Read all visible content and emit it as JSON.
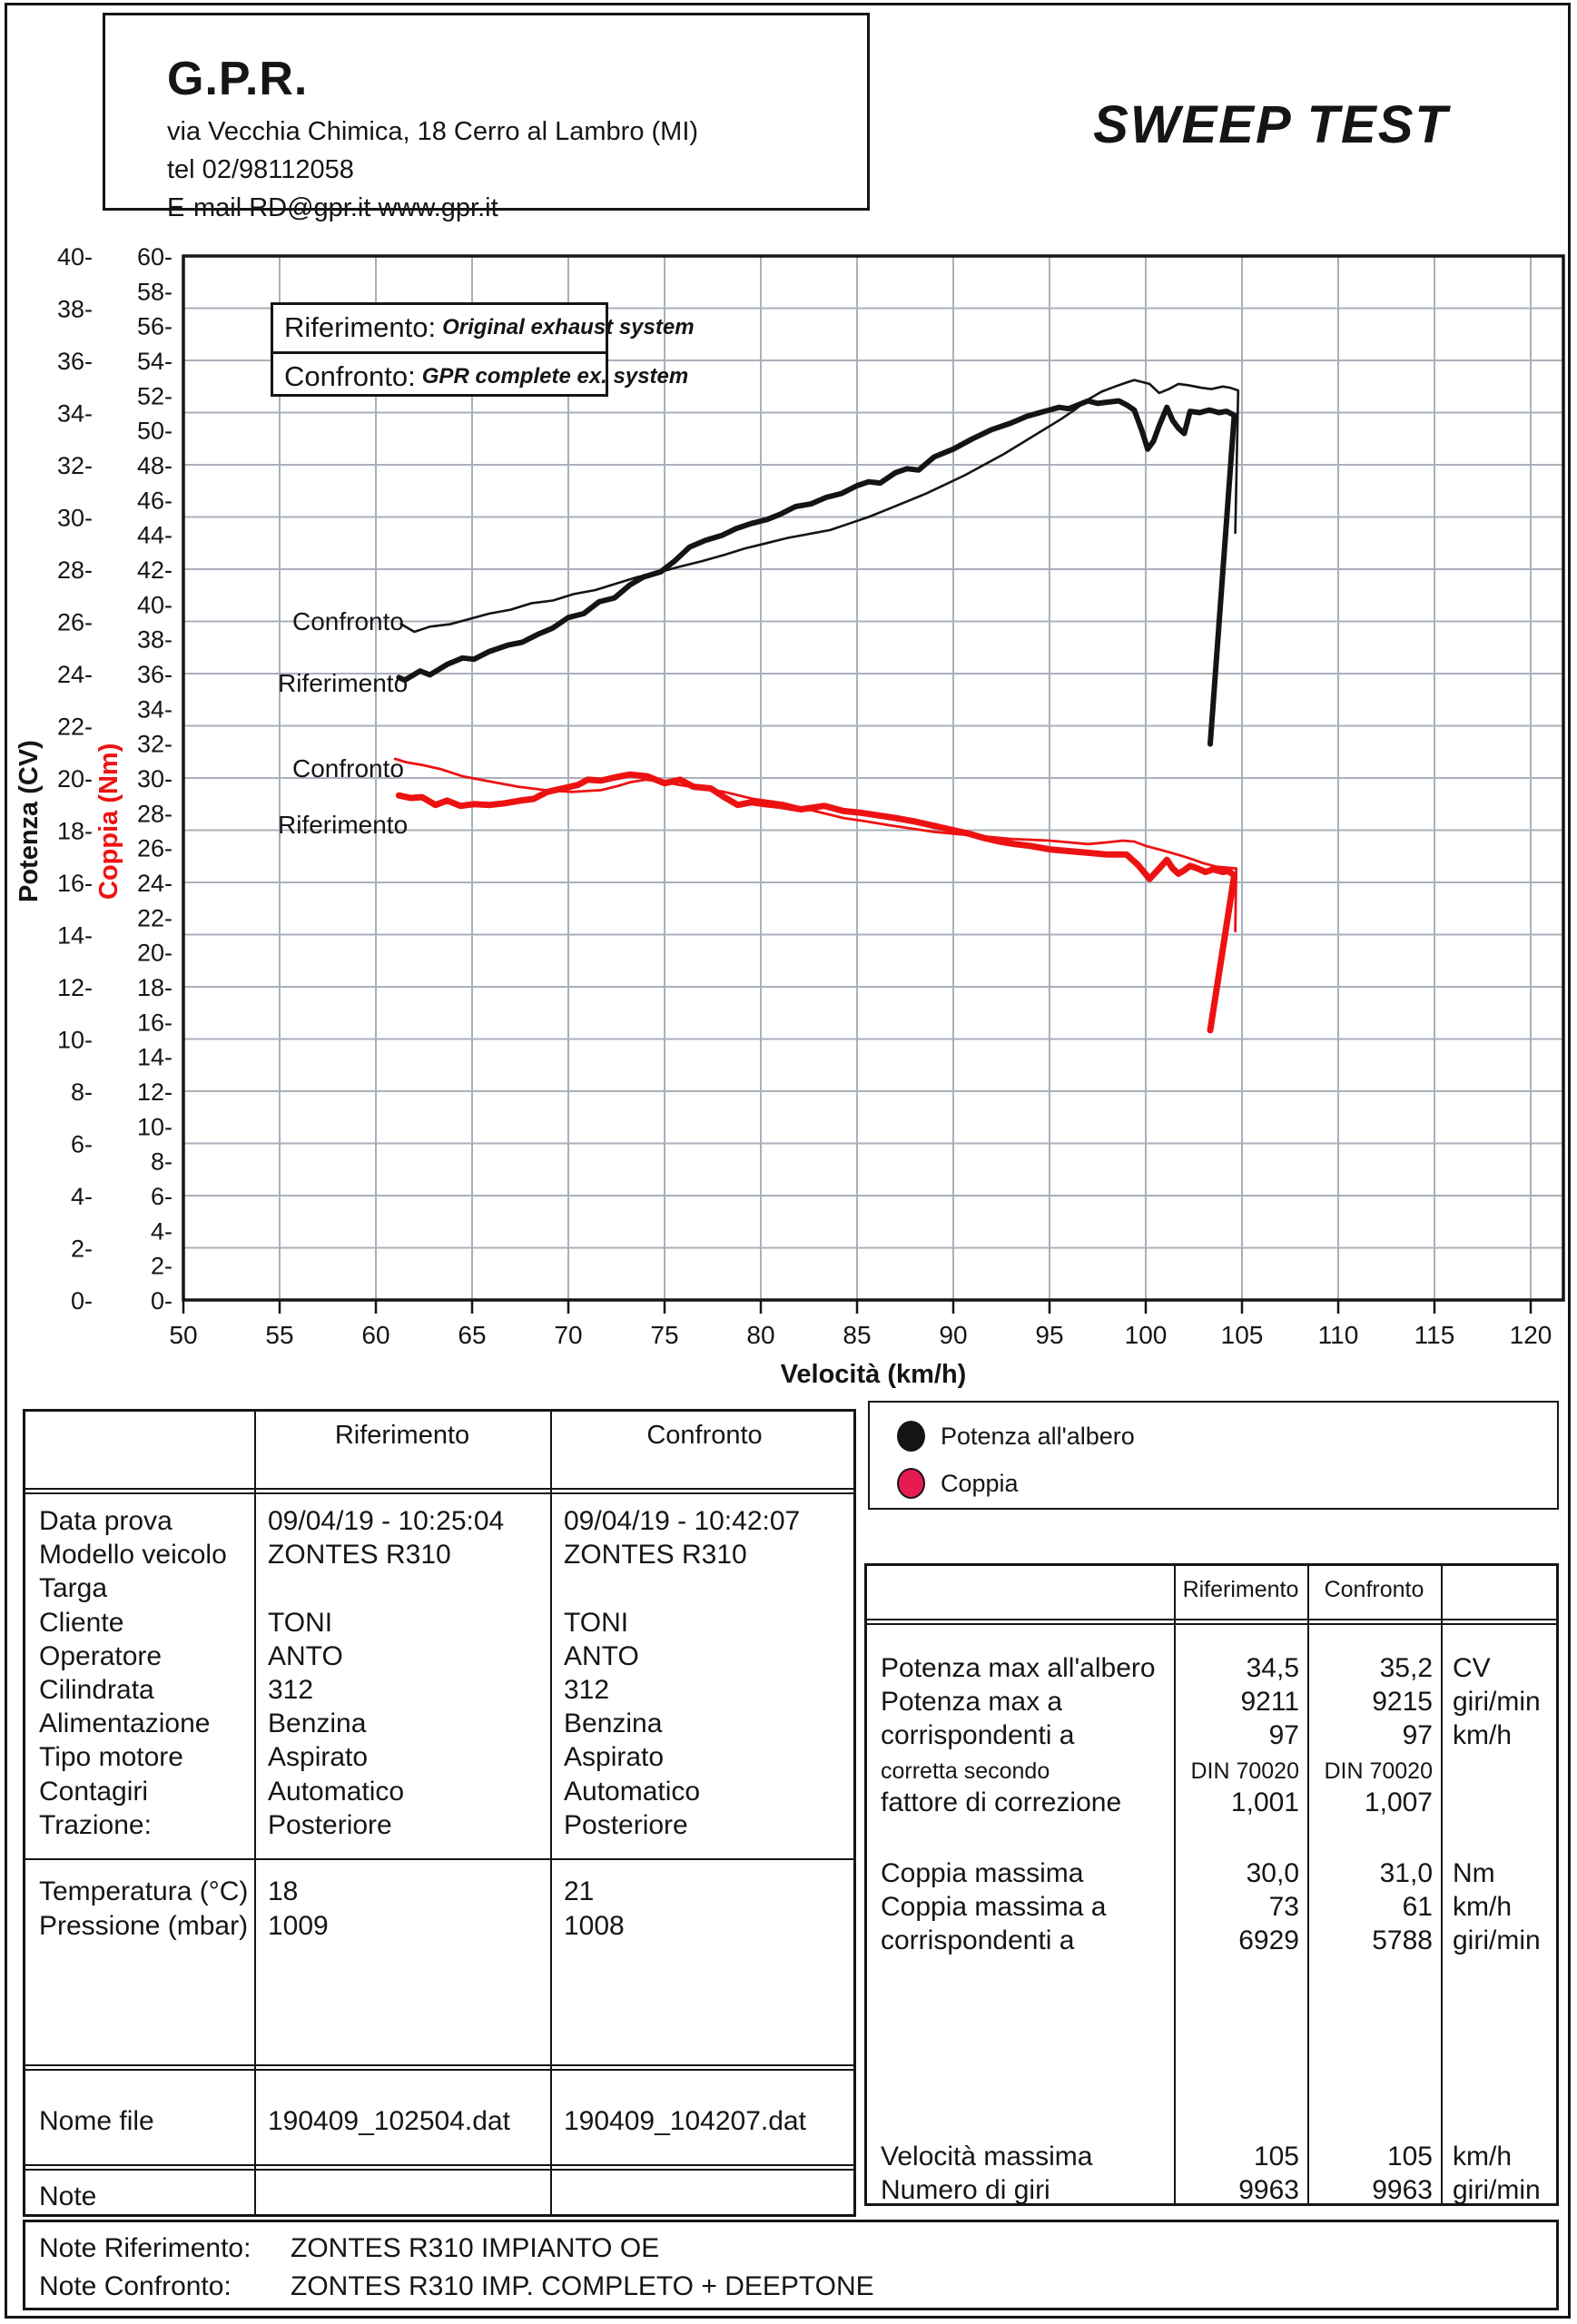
{
  "header": {
    "company": "G.P.R.",
    "address": "via Vecchia Chimica, 18 Cerro al Lambro (MI)",
    "phone": "tel 02/98112058",
    "email_web": "E-mail RD@gpr.it  www.gpr.it",
    "title": "SWEEP TEST"
  },
  "chart_data": {
    "type": "line",
    "xlabel": "Velocità (km/h)",
    "x_axis": {
      "range": [
        50,
        120
      ],
      "tick_step": 5
    },
    "y_axes": {
      "power": {
        "label": "Potenza (CV)",
        "range": [
          0,
          40
        ],
        "tick_step": 2,
        "color": "#151515"
      },
      "torque": {
        "label": "Coppia (Nm)",
        "range": [
          0,
          60
        ],
        "tick_step": 2,
        "color": "#ed1212"
      }
    },
    "grid": {
      "x_step_kmh": 5,
      "y_step_cv": 2,
      "color": "#a9b0ba",
      "on": true
    },
    "legend_position": "upper-left-box",
    "box_legend": [
      {
        "name": "Riferimento:",
        "desc": "Original exhaust system"
      },
      {
        "name": "Confronto:",
        "desc": "GPR complete ex. system"
      }
    ],
    "curve_labels": [
      {
        "text": "Confronto",
        "x": 322,
        "y": 694
      },
      {
        "text": "Riferimento",
        "x": 306,
        "y": 762
      },
      {
        "text": "Confronto",
        "x": 322,
        "y": 856
      },
      {
        "text": "Riferimento",
        "x": 306,
        "y": 918
      }
    ],
    "series": [
      {
        "name": "Potenza Confronto",
        "axis": "power",
        "color": "#141414",
        "width": 2.6,
        "points": [
          [
            61.3,
            25.9
          ],
          [
            62,
            25.6
          ],
          [
            62.8,
            25.8
          ],
          [
            63.9,
            25.9
          ],
          [
            64.9,
            26.1
          ],
          [
            65.9,
            26.3
          ],
          [
            67,
            26.45
          ],
          [
            68.1,
            26.7
          ],
          [
            69.2,
            26.8
          ],
          [
            70.3,
            27.05
          ],
          [
            71.4,
            27.2
          ],
          [
            72.5,
            27.45
          ],
          [
            73.6,
            27.7
          ],
          [
            74.8,
            27.9
          ],
          [
            75.8,
            28.1
          ],
          [
            76.9,
            28.3
          ],
          [
            78.1,
            28.55
          ],
          [
            79.2,
            28.8
          ],
          [
            80.3,
            29
          ],
          [
            81.4,
            29.2
          ],
          [
            82.5,
            29.35
          ],
          [
            83.6,
            29.5
          ],
          [
            84.6,
            29.75
          ],
          [
            85.6,
            30
          ],
          [
            86.6,
            30.3
          ],
          [
            87.6,
            30.6
          ],
          [
            88.6,
            30.9
          ],
          [
            89.6,
            31.25
          ],
          [
            90.6,
            31.6
          ],
          [
            91.6,
            32
          ],
          [
            92.6,
            32.4
          ],
          [
            93.6,
            32.85
          ],
          [
            94.6,
            33.3
          ],
          [
            95.6,
            33.75
          ],
          [
            96.3,
            34.1
          ],
          [
            97,
            34.5
          ],
          [
            97.7,
            34.8
          ],
          [
            98.4,
            35
          ],
          [
            99,
            35.15
          ],
          [
            99.4,
            35.25
          ],
          [
            100.2,
            35.1
          ],
          [
            100.7,
            34.75
          ],
          [
            101.2,
            34.9
          ],
          [
            101.7,
            35.1
          ],
          [
            102.2,
            35.05
          ],
          [
            102.9,
            34.95
          ],
          [
            103.4,
            34.9
          ],
          [
            104,
            35
          ],
          [
            104.4,
            34.95
          ],
          [
            104.8,
            34.85
          ],
          [
            104.65,
            29.4
          ]
        ]
      },
      {
        "name": "Potenza Riferimento",
        "axis": "power",
        "color": "#141414",
        "width": 6,
        "points": [
          [
            61.2,
            23.85
          ],
          [
            61.5,
            23.75
          ],
          [
            62.3,
            24.1
          ],
          [
            62.8,
            23.95
          ],
          [
            63.7,
            24.35
          ],
          [
            64.5,
            24.6
          ],
          [
            65.1,
            24.55
          ],
          [
            65.9,
            24.85
          ],
          [
            66.9,
            25.1
          ],
          [
            67.6,
            25.2
          ],
          [
            68.4,
            25.5
          ],
          [
            69.2,
            25.75
          ],
          [
            70,
            26.15
          ],
          [
            70.8,
            26.3
          ],
          [
            71.6,
            26.75
          ],
          [
            72.4,
            26.9
          ],
          [
            73.2,
            27.4
          ],
          [
            73.9,
            27.7
          ],
          [
            74.8,
            27.9
          ],
          [
            75.5,
            28.3
          ],
          [
            76.3,
            28.85
          ],
          [
            77.1,
            29.1
          ],
          [
            78,
            29.3
          ],
          [
            78.7,
            29.55
          ],
          [
            79.5,
            29.75
          ],
          [
            80.3,
            29.9
          ],
          [
            81,
            30.1
          ],
          [
            81.8,
            30.4
          ],
          [
            82.6,
            30.5
          ],
          [
            83.4,
            30.75
          ],
          [
            84.2,
            30.9
          ],
          [
            85,
            31.2
          ],
          [
            85.6,
            31.35
          ],
          [
            86.2,
            31.3
          ],
          [
            87,
            31.7
          ],
          [
            87.6,
            31.85
          ],
          [
            88.2,
            31.8
          ],
          [
            89,
            32.3
          ],
          [
            90,
            32.6
          ],
          [
            91,
            33
          ],
          [
            92,
            33.35
          ],
          [
            93,
            33.6
          ],
          [
            93.8,
            33.85
          ],
          [
            94.5,
            34
          ],
          [
            95,
            34.1
          ],
          [
            95.5,
            34.2
          ],
          [
            96,
            34.15
          ],
          [
            96.5,
            34.3
          ],
          [
            97,
            34.45
          ],
          [
            97.5,
            34.35
          ],
          [
            98,
            34.4
          ],
          [
            98.6,
            34.45
          ],
          [
            99,
            34.3
          ],
          [
            99.4,
            34.1
          ],
          [
            99.8,
            33.3
          ],
          [
            100.1,
            32.6
          ],
          [
            100.4,
            32.9
          ],
          [
            100.7,
            33.5
          ],
          [
            101.1,
            34.2
          ],
          [
            101.4,
            33.7
          ],
          [
            101.7,
            33.4
          ],
          [
            102,
            33.2
          ],
          [
            102.3,
            34.05
          ],
          [
            102.8,
            34
          ],
          [
            103.3,
            34.1
          ],
          [
            103.8,
            34
          ],
          [
            104.2,
            34.05
          ],
          [
            104.6,
            33.9
          ],
          [
            103.35,
            21.3
          ]
        ]
      },
      {
        "name": "Coppia Confronto",
        "axis": "torque",
        "color": "#ed1212",
        "width": 2.8,
        "points": [
          [
            61,
            31.1
          ],
          [
            61.6,
            30.9
          ],
          [
            62.4,
            30.75
          ],
          [
            63.4,
            30.5
          ],
          [
            64.5,
            30.1
          ],
          [
            65.9,
            29.8
          ],
          [
            67.4,
            29.5
          ],
          [
            68.8,
            29.3
          ],
          [
            70.2,
            29.2
          ],
          [
            71.7,
            29.3
          ],
          [
            72.6,
            29.55
          ],
          [
            73.2,
            29.75
          ],
          [
            74,
            29.9
          ],
          [
            74.8,
            29.8
          ],
          [
            75.8,
            29.6
          ],
          [
            76.9,
            29.4
          ],
          [
            78.1,
            29.2
          ],
          [
            79.6,
            28.8
          ],
          [
            81.2,
            28.55
          ],
          [
            82.8,
            28.1
          ],
          [
            84.3,
            27.7
          ],
          [
            85.5,
            27.5
          ],
          [
            86.6,
            27.3
          ],
          [
            87.8,
            27.1
          ],
          [
            89,
            26.9
          ],
          [
            90,
            26.8
          ],
          [
            91,
            26.7
          ],
          [
            92,
            26.6
          ],
          [
            93,
            26.5
          ],
          [
            94,
            26.45
          ],
          [
            95,
            26.4
          ],
          [
            96,
            26.3
          ],
          [
            97,
            26.2
          ],
          [
            98,
            26.3
          ],
          [
            98.8,
            26.4
          ],
          [
            99.4,
            26.35
          ],
          [
            100,
            26.1
          ],
          [
            101,
            25.8
          ],
          [
            101.8,
            25.55
          ],
          [
            102.5,
            25.3
          ],
          [
            103,
            25.1
          ],
          [
            103.7,
            24.9
          ],
          [
            104.2,
            24.85
          ],
          [
            104.7,
            24.8
          ],
          [
            104.65,
            21.2
          ]
        ]
      },
      {
        "name": "Coppia Riferimento",
        "axis": "torque",
        "color": "#ed1212",
        "width": 7,
        "points": [
          [
            61.2,
            29
          ],
          [
            61.8,
            28.85
          ],
          [
            62.4,
            28.9
          ],
          [
            63.1,
            28.45
          ],
          [
            63.7,
            28.7
          ],
          [
            64.4,
            28.4
          ],
          [
            65.1,
            28.5
          ],
          [
            65.9,
            28.45
          ],
          [
            66.7,
            28.55
          ],
          [
            67.5,
            28.7
          ],
          [
            68.2,
            28.8
          ],
          [
            68.9,
            29.2
          ],
          [
            69.7,
            29.4
          ],
          [
            70.5,
            29.6
          ],
          [
            71,
            29.9
          ],
          [
            71.7,
            29.85
          ],
          [
            72.5,
            30.05
          ],
          [
            73.2,
            30.2
          ],
          [
            74.1,
            30.1
          ],
          [
            75,
            29.7
          ],
          [
            75.8,
            29.9
          ],
          [
            76.5,
            29.5
          ],
          [
            77.4,
            29.4
          ],
          [
            78.1,
            28.9
          ],
          [
            78.8,
            28.45
          ],
          [
            79.5,
            28.6
          ],
          [
            80.2,
            28.5
          ],
          [
            81,
            28.4
          ],
          [
            82.1,
            28.2
          ],
          [
            83.3,
            28.4
          ],
          [
            84.3,
            28.1
          ],
          [
            85.2,
            28
          ],
          [
            86.1,
            27.85
          ],
          [
            87,
            27.7
          ],
          [
            88,
            27.5
          ],
          [
            89,
            27.25
          ],
          [
            90,
            27
          ],
          [
            90.8,
            26.8
          ],
          [
            91.6,
            26.55
          ],
          [
            92.4,
            26.35
          ],
          [
            93.2,
            26.2
          ],
          [
            94,
            26.1
          ],
          [
            95,
            25.9
          ],
          [
            96,
            25.8
          ],
          [
            97,
            25.7
          ],
          [
            98,
            25.6
          ],
          [
            99,
            25.6
          ],
          [
            99.6,
            25
          ],
          [
            100.2,
            24.2
          ],
          [
            100.7,
            24.8
          ],
          [
            101.1,
            25.3
          ],
          [
            101.4,
            24.8
          ],
          [
            101.7,
            24.5
          ],
          [
            102,
            24.7
          ],
          [
            102.3,
            24.95
          ],
          [
            102.7,
            24.8
          ],
          [
            103.1,
            24.6
          ],
          [
            103.5,
            24.75
          ],
          [
            104,
            24.6
          ],
          [
            104.3,
            24.65
          ],
          [
            104.6,
            24.4
          ],
          [
            103.35,
            15.5
          ]
        ]
      }
    ]
  },
  "info_table": {
    "col_headers": [
      "Riferimento",
      "Confronto"
    ],
    "rows": [
      {
        "label": "Data prova",
        "rif": "09/04/19 - 10:25:04",
        "conf": "09/04/19 - 10:42:07"
      },
      {
        "label": "Modello veicolo",
        "rif": "ZONTES R310",
        "conf": "ZONTES R310"
      },
      {
        "label": "Targa",
        "rif": "",
        "conf": ""
      },
      {
        "label": "Cliente",
        "rif": "TONI",
        "conf": "TONI"
      },
      {
        "label": "Operatore",
        "rif": "ANTO",
        "conf": "ANTO"
      },
      {
        "label": "Cilindrata",
        "rif": "312",
        "conf": "312"
      },
      {
        "label": "Alimentazione",
        "rif": "Benzina",
        "conf": "Benzina"
      },
      {
        "label": "Tipo motore",
        "rif": "Aspirato",
        "conf": "Aspirato"
      },
      {
        "label": "Contagiri",
        "rif": "Automatico",
        "conf": "Automatico"
      },
      {
        "label": "Trazione:",
        "rif": "Posteriore",
        "conf": "Posteriore"
      }
    ],
    "env_rows": [
      {
        "label": "Temperatura (°C)",
        "rif": "18",
        "conf": "21"
      },
      {
        "label": "Pressione (mbar)",
        "rif": "1009",
        "conf": "1008"
      }
    ],
    "file_row": {
      "label": "Nome file",
      "rif": "190409_102504.dat",
      "conf": "190409_104207.dat"
    },
    "note_label": "Note"
  },
  "curve_legend": [
    {
      "label": "Potenza all'albero",
      "color": "#141414",
      "outline": "#141414"
    },
    {
      "label": "Coppia",
      "color": "#e81a52",
      "outline": "#141414"
    }
  ],
  "results_table": {
    "col_headers": [
      "Riferimento",
      "Confronto"
    ],
    "sections": [
      [
        {
          "label": "Potenza max all'albero",
          "rif": "34,5",
          "conf": "35,2",
          "unit": "CV"
        },
        {
          "label": "Potenza max a",
          "rif": "9211",
          "conf": "9215",
          "unit": "giri/min"
        },
        {
          "label": "corrispondenti a",
          "rif": "97",
          "conf": "97",
          "unit": "km/h"
        },
        {
          "label": "corretta secondo",
          "rif": "DIN 70020",
          "conf": "DIN 70020",
          "unit": "",
          "small": true
        },
        {
          "label": "fattore di correzione",
          "rif": "1,001",
          "conf": "1,007",
          "unit": ""
        }
      ],
      [
        {
          "label": "Coppia massima",
          "rif": "30,0",
          "conf": "31,0",
          "unit": "Nm"
        },
        {
          "label": "Coppia massima a",
          "rif": "73",
          "conf": "61",
          "unit": "km/h"
        },
        {
          "label": "corrispondenti a",
          "rif": "6929",
          "conf": "5788",
          "unit": "giri/min"
        }
      ],
      [
        {
          "label": "Velocità massima",
          "rif": "105",
          "conf": "105",
          "unit": "km/h"
        },
        {
          "label": "Numero di giri",
          "rif": "9963",
          "conf": "9963",
          "unit": "giri/min"
        }
      ]
    ]
  },
  "bottom_notes": [
    {
      "label": "Note Riferimento:",
      "value": "ZONTES R310 IMPIANTO OE"
    },
    {
      "label": "Note Confronto:",
      "value": "ZONTES R310 IMP. COMPLETO + DEEPTONE"
    }
  ]
}
